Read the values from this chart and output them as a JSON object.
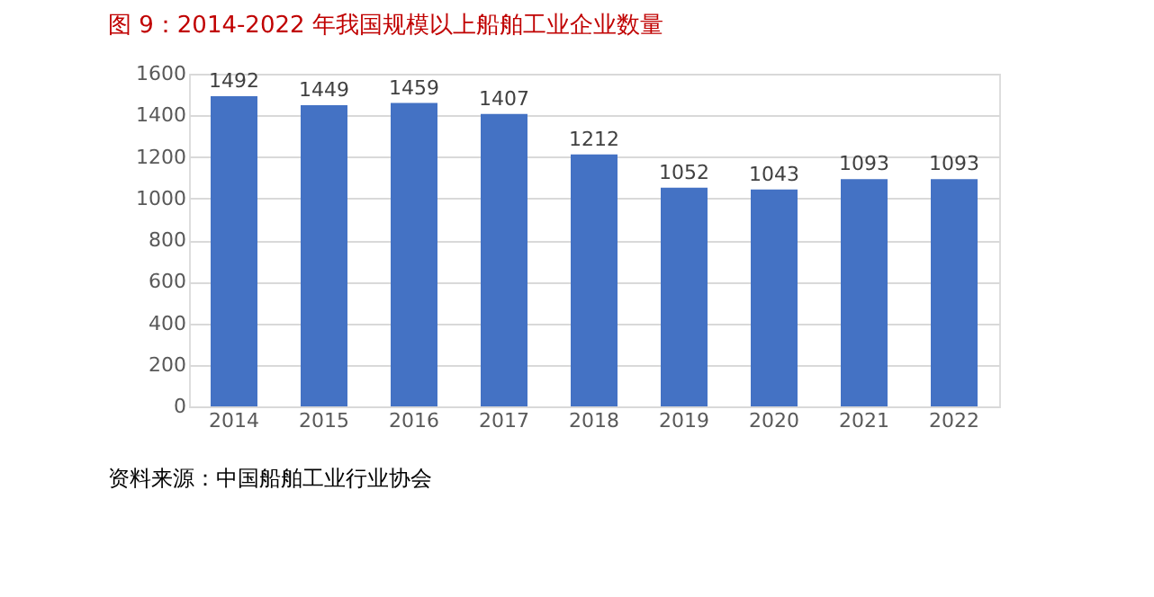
{
  "chart_data": {
    "type": "bar",
    "title": "图 9：2014-2022 年我国规模以上船舶工业企业数量",
    "categories": [
      "2014",
      "2015",
      "2016",
      "2017",
      "2018",
      "2019",
      "2020",
      "2021",
      "2022"
    ],
    "values": [
      1492,
      1449,
      1459,
      1407,
      1212,
      1052,
      1043,
      1093,
      1093
    ],
    "color": "#4472c4",
    "ylim": [
      0,
      1600
    ],
    "yticks": [
      0,
      200,
      400,
      600,
      800,
      1000,
      1200,
      1400,
      1600
    ],
    "grid": "y",
    "data_labels": true,
    "annotations": [
      "资料来源：中国船舶工业行业协会"
    ]
  }
}
